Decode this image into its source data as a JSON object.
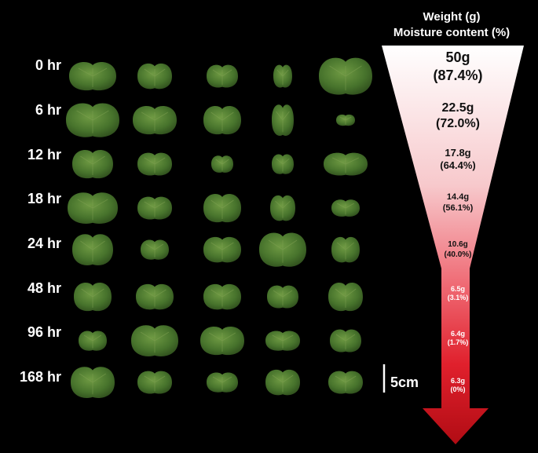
{
  "rows": [
    {
      "label": "0 hr"
    },
    {
      "label": "6 hr"
    },
    {
      "label": "12 hr"
    },
    {
      "label": "18 hr"
    },
    {
      "label": "24 hr"
    },
    {
      "label": "48 hr"
    },
    {
      "label": "96 hr"
    },
    {
      "label": "168 hr"
    }
  ],
  "header": {
    "line1": "Weight (g)",
    "line2": "Moisture content (%)"
  },
  "measurements": [
    {
      "weight": "50g",
      "moisture": "(87.4%)"
    },
    {
      "weight": "22.5g",
      "moisture": "(72.0%)"
    },
    {
      "weight": "17.8g",
      "moisture": "(64.4%)"
    },
    {
      "weight": "14.4g",
      "moisture": "(56.1%)"
    },
    {
      "weight": "10.6g",
      "moisture": "(40.0%)"
    },
    {
      "weight": "6.5g",
      "moisture": "(3.1%)"
    },
    {
      "weight": "6.4g",
      "moisture": "(1.7%)"
    },
    {
      "weight": "6.3g",
      "moisture": "(0%)"
    }
  ],
  "scale_bar": {
    "label": "5cm"
  },
  "colors": {
    "background": "#000000",
    "gradient_top": "#ffffff",
    "gradient_bottom": "#b50d14",
    "leaf_fresh": "#3f6a2a",
    "leaf_dry": "#5a7a30"
  }
}
